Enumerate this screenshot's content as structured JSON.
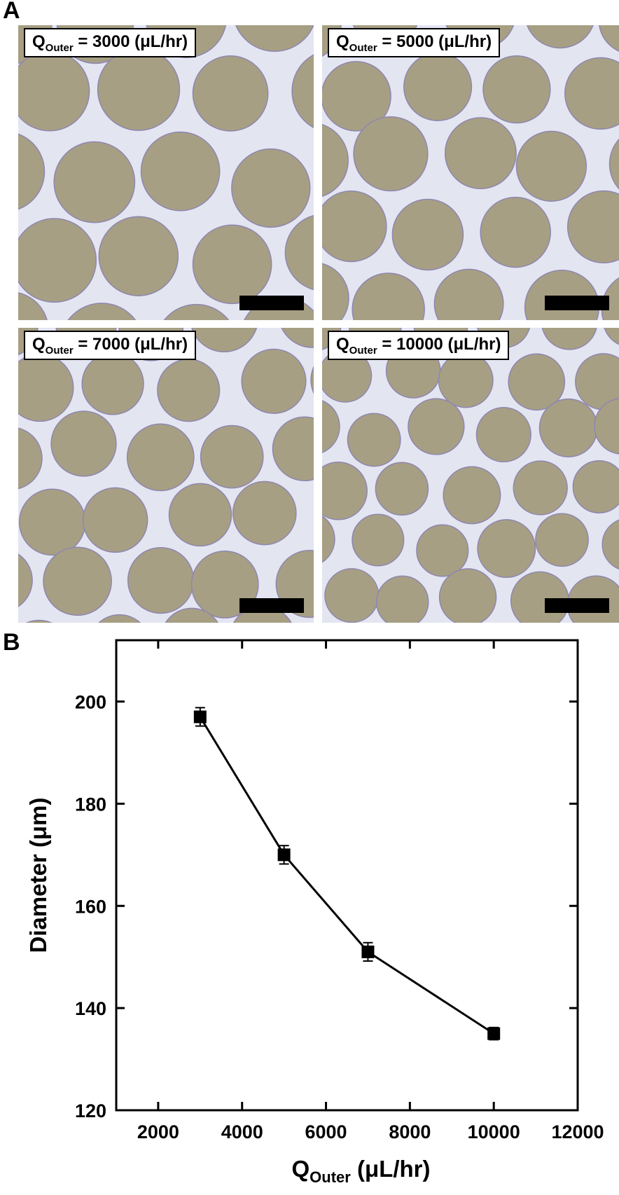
{
  "panel_a": {
    "letter": "A",
    "images": [
      {
        "label_main": "Q",
        "label_sub": "Outer",
        "label_rest": " = 3000 (μL/hr)"
      },
      {
        "label_main": "Q",
        "label_sub": "Outer",
        "label_rest": " = 5000 (μL/hr)"
      },
      {
        "label_main": "Q",
        "label_sub": "Outer",
        "label_rest": " = 7000 (μL/hr)"
      },
      {
        "label_main": "Q",
        "label_sub": "Outer",
        "label_rest": " = 10000 (μL/hr)"
      }
    ],
    "colors": {
      "background": "#e3e5f1",
      "bead_fill": "#a79f83",
      "bead_edge": "#8e86b0",
      "scale_bar": "#000000"
    }
  },
  "panel_b": {
    "letter": "B"
  },
  "chart_data": {
    "type": "line",
    "title": "",
    "xlabel_main": "Q",
    "xlabel_sub": "Outer",
    "xlabel_rest": " (μL/hr)",
    "ylabel": "Diameter (μm)",
    "xlim": [
      1000,
      12000
    ],
    "ylim": [
      120,
      212
    ],
    "xticks": [
      2000,
      4000,
      6000,
      8000,
      10000,
      12000
    ],
    "yticks": [
      120,
      140,
      160,
      180,
      200
    ],
    "grid": false,
    "legend": "none",
    "marker": "square",
    "series": [
      {
        "x": [
          3000,
          5000,
          7000,
          10000
        ],
        "y": [
          197,
          170,
          151,
          135
        ],
        "error": [
          1.8,
          1.8,
          1.8,
          1.2
        ]
      }
    ]
  }
}
